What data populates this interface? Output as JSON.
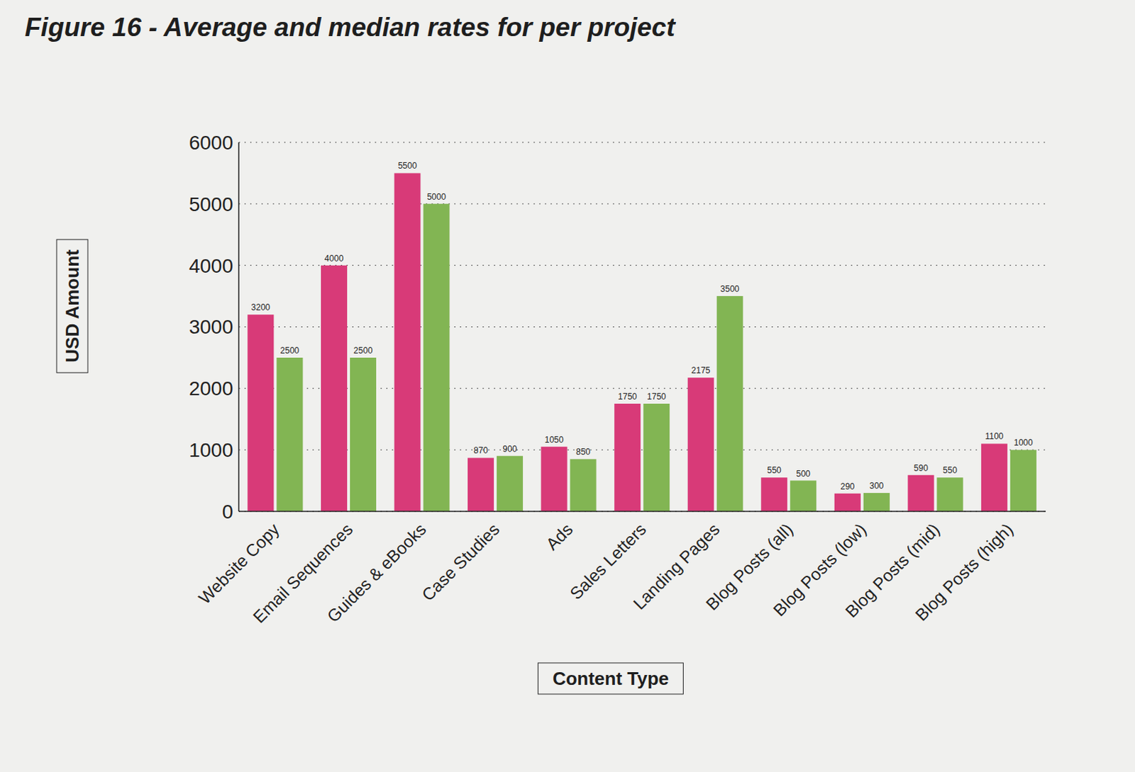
{
  "chart_data": {
    "type": "bar",
    "title": "Figure 16 - Average and median rates for per project",
    "x_label": "Content Type",
    "y_label": "USD Amount",
    "categories": [
      "Website Copy",
      "Email Sequences",
      "Guides & eBooks",
      "Case Studies",
      "Ads",
      "Sales Letters",
      "Landing Pages",
      "Blog Posts (all)",
      "Blog Posts (low)",
      "Blog Posts (mid)",
      "Blog Posts (high)"
    ],
    "series": [
      {
        "color": "#d83a78",
        "values": [
          3200,
          4000,
          5500,
          870,
          1050,
          1750,
          2175,
          550,
          290,
          590,
          1100
        ]
      },
      {
        "color": "#82b553",
        "values": [
          2500,
          2500,
          5000,
          900,
          850,
          1750,
          3500,
          500,
          300,
          550,
          1000
        ]
      }
    ],
    "ylim": [
      0,
      6000
    ],
    "yticks": [
      0,
      1000,
      2000,
      3000,
      4000,
      5000,
      6000
    ],
    "grid": true,
    "data_labels": true
  }
}
